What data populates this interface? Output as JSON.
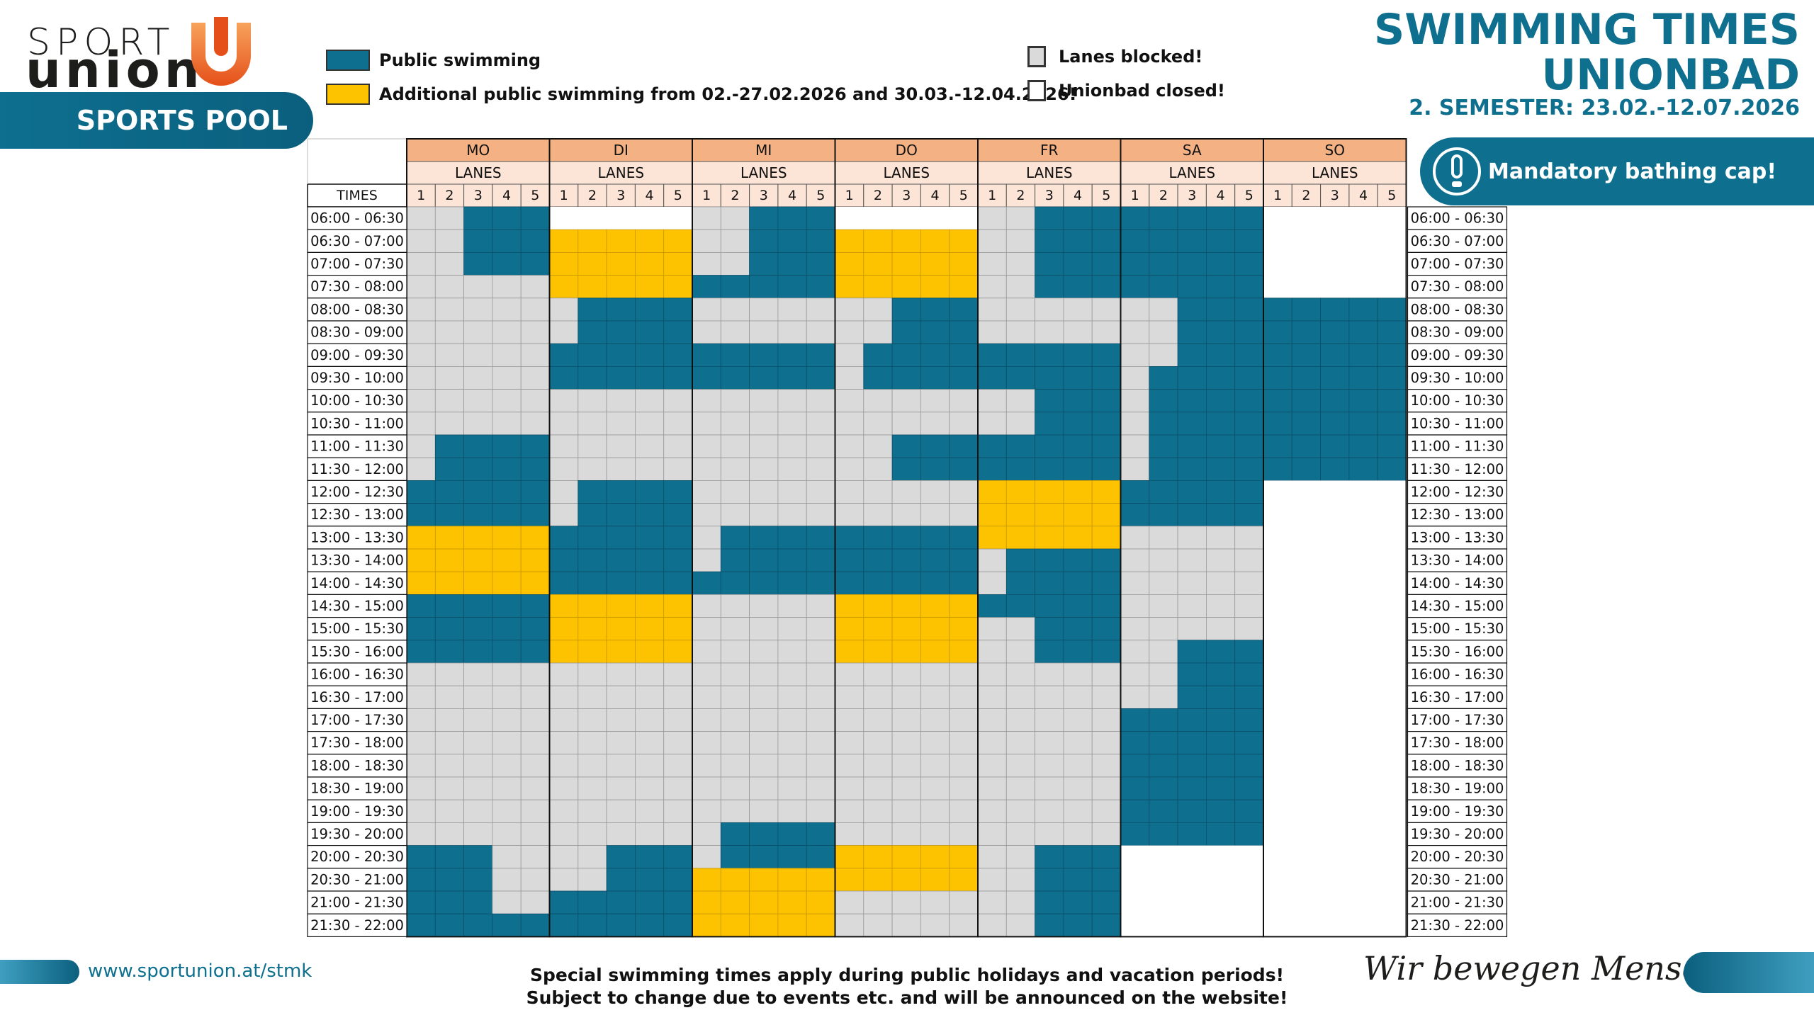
{
  "logo": {
    "sport": "SPORT",
    "union": "union",
    "sports_pool": "SPORTS POOL"
  },
  "legend": {
    "public": "Public swimming",
    "additional": "Additional public swimming from 02.-27.02.2026 and 30.03.-12.04.2026!",
    "blocked": "Lanes blocked!",
    "closed": "Unionbad closed!"
  },
  "title": {
    "line1": "SWIMMING TIMES",
    "line2": "UNIONBAD",
    "semester": "2. SEMESTER: 23.02.-12.07.2026"
  },
  "cap_notice": "Mandatory bathing cap!",
  "colors": {
    "public": "#0e6f8f",
    "additional": "#fdc300",
    "blocked": "#dadada",
    "closed": "#ffffff",
    "header": "#f4b183",
    "header_light": "#fce4d6"
  },
  "table": {
    "times_header": "TIMES",
    "lanes_label": "LANES",
    "lanes": [
      "1",
      "2",
      "3",
      "4",
      "5"
    ],
    "days": [
      "MO",
      "DI",
      "MI",
      "DO",
      "FR",
      "SA",
      "SO"
    ],
    "times": [
      "06:00 - 06:30",
      "06:30 - 07:00",
      "07:00 - 07:30",
      "07:30 - 08:00",
      "08:00 - 08:30",
      "08:30 - 09:00",
      "09:00 - 09:30",
      "09:30 - 10:00",
      "10:00 - 10:30",
      "10:30 - 11:00",
      "11:00 - 11:30",
      "11:30 - 12:00",
      "12:00 - 12:30",
      "12:30 - 13:00",
      "13:00 - 13:30",
      "13:30 - 14:00",
      "14:00 - 14:30",
      "14:30 - 15:00",
      "15:00 - 15:30",
      "15:30 - 16:00",
      "16:00 - 16:30",
      "16:30 - 17:00",
      "17:00 - 17:30",
      "17:30 - 18:00",
      "18:00 - 18:30",
      "18:30 - 19:00",
      "19:00 - 19:30",
      "19:30 - 20:00",
      "20:00 - 20:30",
      "20:30 - 21:00",
      "21:00 - 21:30",
      "21:30 - 22:00"
    ],
    "legend_codes": {
      "P": "Public swimming",
      "A": "Additional public swimming",
      "B": "Lanes blocked",
      "C": "Unionbad closed"
    },
    "schedule": {
      "MO": [
        "BBPPP",
        "BBPPP",
        "BBPPP",
        "BBBBB",
        "BBBBB",
        "BBBBB",
        "BBBBB",
        "BBBBB",
        "BBBBB",
        "BBBBB",
        "BPPPP",
        "BPPPP",
        "PPPPP",
        "PPPPP",
        "AAAAA",
        "AAAAA",
        "AAAAA",
        "PPPPP",
        "PPPPP",
        "PPPPP",
        "BBBBB",
        "BBBBB",
        "BBBBB",
        "BBBBB",
        "BBBBB",
        "BBBBB",
        "BBBBB",
        "BBBBB",
        "PPPBB",
        "PPPBB",
        "PPPBB",
        "PPPPP"
      ],
      "DI": [
        "CCCCC",
        "AAAAA",
        "AAAAA",
        "AAAAA",
        "BPPPP",
        "BPPPP",
        "PPPPP",
        "PPPPP",
        "BBBBB",
        "BBBBB",
        "BBBBB",
        "BBBBB",
        "BPPPP",
        "BPPPP",
        "PPPPP",
        "PPPPP",
        "PPPPP",
        "AAAAA",
        "AAAAA",
        "AAAAA",
        "BBBBB",
        "BBBBB",
        "BBBBB",
        "BBBBB",
        "BBBBB",
        "BBBBB",
        "BBBBB",
        "BBBBB",
        "BBPPP",
        "BBPPP",
        "PPPPP",
        "PPPPP"
      ],
      "MI": [
        "BBPPP",
        "BBPPP",
        "BBPPP",
        "PPPPP",
        "BBBBB",
        "BBBBB",
        "PPPPP",
        "PPPPP",
        "BBBBB",
        "BBBBB",
        "BBBBB",
        "BBBBB",
        "BBBBB",
        "BBBBB",
        "BPPPP",
        "BPPPP",
        "PPPPP",
        "BBBBB",
        "BBBBB",
        "BBBBB",
        "BBBBB",
        "BBBBB",
        "BBBBB",
        "BBBBB",
        "BBBBB",
        "BBBBB",
        "BBBBB",
        "BPPPP",
        "BPPPP",
        "AAAAA",
        "AAAAA",
        "AAAAA"
      ],
      "DO": [
        "CCCCC",
        "AAAAA",
        "AAAAA",
        "AAAAA",
        "BBPPP",
        "BBPPP",
        "BPPPP",
        "BPPPP",
        "BBBBB",
        "BBBBB",
        "BBPPP",
        "BBPPP",
        "BBBBB",
        "BBBBB",
        "PPPPP",
        "PPPPP",
        "PPPPP",
        "AAAAA",
        "AAAAA",
        "AAAAA",
        "BBBBB",
        "BBBBB",
        "BBBBB",
        "BBBBB",
        "BBBBB",
        "BBBBB",
        "BBBBB",
        "BBBBB",
        "AAAAA",
        "AAAAA",
        "BBBBB",
        "BBBBB"
      ],
      "FR": [
        "BBPPP",
        "BBPPP",
        "BBPPP",
        "BBPPP",
        "BBBBB",
        "BBBBB",
        "PPPPP",
        "PPPPP",
        "BBPPP",
        "BBPPP",
        "PPPPP",
        "PPPPP",
        "AAAAA",
        "AAAAA",
        "AAAAA",
        "BPPPP",
        "BPPPP",
        "PPPPP",
        "BBPPP",
        "BBPPP",
        "BBBBB",
        "BBBBB",
        "BBBBB",
        "BBBBB",
        "BBBBB",
        "BBBBB",
        "BBBBB",
        "BBBBB",
        "BBPPP",
        "BBPPP",
        "BBPPP",
        "BBPPP"
      ],
      "SA": [
        "PPPPP",
        "PPPPP",
        "PPPPP",
        "PPPPP",
        "BBPPP",
        "BBPPP",
        "BBPPP",
        "BPPPP",
        "BPPPP",
        "BPPPP",
        "BPPPP",
        "BPPPP",
        "PPPPP",
        "PPPPP",
        "BBBBB",
        "BBBBB",
        "BBBBB",
        "BBBBB",
        "BBBBB",
        "BBPPP",
        "BBPPP",
        "BBPPP",
        "PPPPP",
        "PPPPP",
        "PPPPP",
        "PPPPP",
        "PPPPP",
        "PPPPP",
        "CCCCC",
        "CCCCC",
        "CCCCC",
        "CCCCC"
      ],
      "SO": [
        "CCCCC",
        "CCCCC",
        "CCCCC",
        "CCCCC",
        "PPPPP",
        "PPPPP",
        "PPPPP",
        "PPPPP",
        "PPPPP",
        "PPPPP",
        "PPPPP",
        "PPPPP",
        "CCCCC",
        "CCCCC",
        "CCCCC",
        "CCCCC",
        "CCCCC",
        "CCCCC",
        "CCCCC",
        "CCCCC",
        "CCCCC",
        "CCCCC",
        "CCCCC",
        "CCCCC",
        "CCCCC",
        "CCCCC",
        "CCCCC",
        "CCCCC",
        "CCCCC",
        "CCCCC",
        "CCCCC",
        "CCCCC"
      ]
    }
  },
  "footer": {
    "url": "www.sportunion.at/stmk",
    "note1": "Special swimming times apply during public holidays and vacation periods!",
    "note2": "Subject to change due to events etc. and will be announced on the website!",
    "slogan": "Wir bewegen Menschen"
  }
}
